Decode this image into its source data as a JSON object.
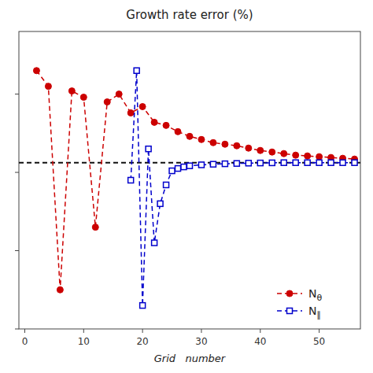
{
  "chart_data": {
    "type": "line",
    "title": "Growth rate error (%)",
    "x_label": "Grid   number",
    "series": [
      {
        "name": "Nθ",
        "color": "#cc0000",
        "marker": "circle",
        "line_style": "dashed",
        "x": [
          2,
          4,
          6,
          8,
          10,
          12,
          14,
          16,
          18,
          20,
          22,
          24,
          26,
          28,
          30,
          32,
          34,
          36,
          38,
          40,
          42,
          44,
          46,
          48,
          50,
          52,
          54,
          56
        ],
        "values": [
          6.5,
          5.5,
          -7.5,
          5.2,
          4.8,
          -3.5,
          4.5,
          5.0,
          3.8,
          4.2,
          3.2,
          3.0,
          2.6,
          2.3,
          2.1,
          1.9,
          1.8,
          1.7,
          1.55,
          1.4,
          1.3,
          1.2,
          1.1,
          1.05,
          1.0,
          0.95,
          0.9,
          0.85
        ]
      },
      {
        "name": "N∥",
        "color": "#0000cc",
        "marker": "open-square",
        "line_style": "dashed",
        "x": [
          18,
          19,
          20,
          21,
          22,
          23,
          24,
          25,
          26,
          27,
          28,
          30,
          32,
          34,
          36,
          38,
          40,
          42,
          44,
          46,
          48,
          50,
          52,
          54,
          56
        ],
        "values": [
          -0.5,
          6.5,
          -8.5,
          1.5,
          -4.5,
          -2.0,
          -0.8,
          0.1,
          0.25,
          0.35,
          0.42,
          0.48,
          0.52,
          0.55,
          0.57,
          0.59,
          0.6,
          0.61,
          0.62,
          0.62,
          0.62,
          0.62,
          0.62,
          0.62,
          0.62
        ]
      }
    ],
    "ref_line": {
      "value": 0.62,
      "color": "#111111",
      "line_style": "dashed"
    },
    "xlim": [
      -1,
      57
    ],
    "ylim": [
      -10,
      9
    ],
    "xticks": [
      0,
      10,
      20,
      30,
      40,
      50
    ],
    "yticks": [
      -10,
      -5,
      0,
      5
    ],
    "tick_labels": "x",
    "grid": false,
    "legend": "lower right"
  }
}
